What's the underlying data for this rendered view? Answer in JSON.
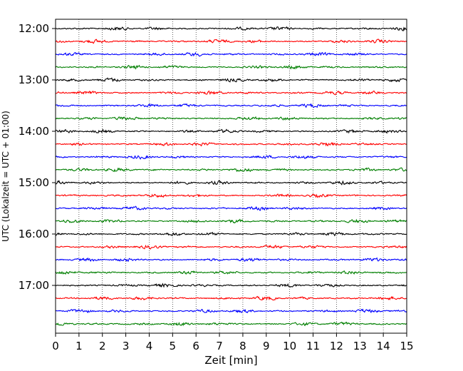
{
  "chart_data": {
    "type": "line",
    "title": "",
    "xlabel": "Zeit  [min]",
    "ylabel": "UTC (Lokalzeit = UTC + 01:00)",
    "xlim": [
      0,
      15
    ],
    "x_ticks": [
      0,
      1,
      2,
      3,
      4,
      5,
      6,
      7,
      8,
      9,
      10,
      11,
      12,
      13,
      14,
      15
    ],
    "y_start": "12:00",
    "y_end": "17:45",
    "trace_interval_minutes": 15,
    "y_ticks": [
      "12:00",
      "13:00",
      "14:00",
      "15:00",
      "16:00",
      "17:00"
    ],
    "grid": "vertical dotted at each minute",
    "legend": "none",
    "trace_colors": [
      "#000000",
      "#ff0000",
      "#0000ff",
      "#007f00"
    ],
    "series": [
      {
        "start": "12:00"
      },
      {
        "start": "12:15"
      },
      {
        "start": "12:30"
      },
      {
        "start": "12:45"
      },
      {
        "start": "13:00"
      },
      {
        "start": "13:15"
      },
      {
        "start": "13:30"
      },
      {
        "start": "13:45"
      },
      {
        "start": "14:00"
      },
      {
        "start": "14:15"
      },
      {
        "start": "14:30"
      },
      {
        "start": "14:45"
      },
      {
        "start": "15:00"
      },
      {
        "start": "15:15"
      },
      {
        "start": "15:30"
      },
      {
        "start": "15:45"
      },
      {
        "start": "16:00"
      },
      {
        "start": "16:15"
      },
      {
        "start": "16:30"
      },
      {
        "start": "16:45"
      },
      {
        "start": "17:00"
      },
      {
        "start": "17:15"
      },
      {
        "start": "17:30"
      },
      {
        "start": "17:45"
      }
    ]
  }
}
